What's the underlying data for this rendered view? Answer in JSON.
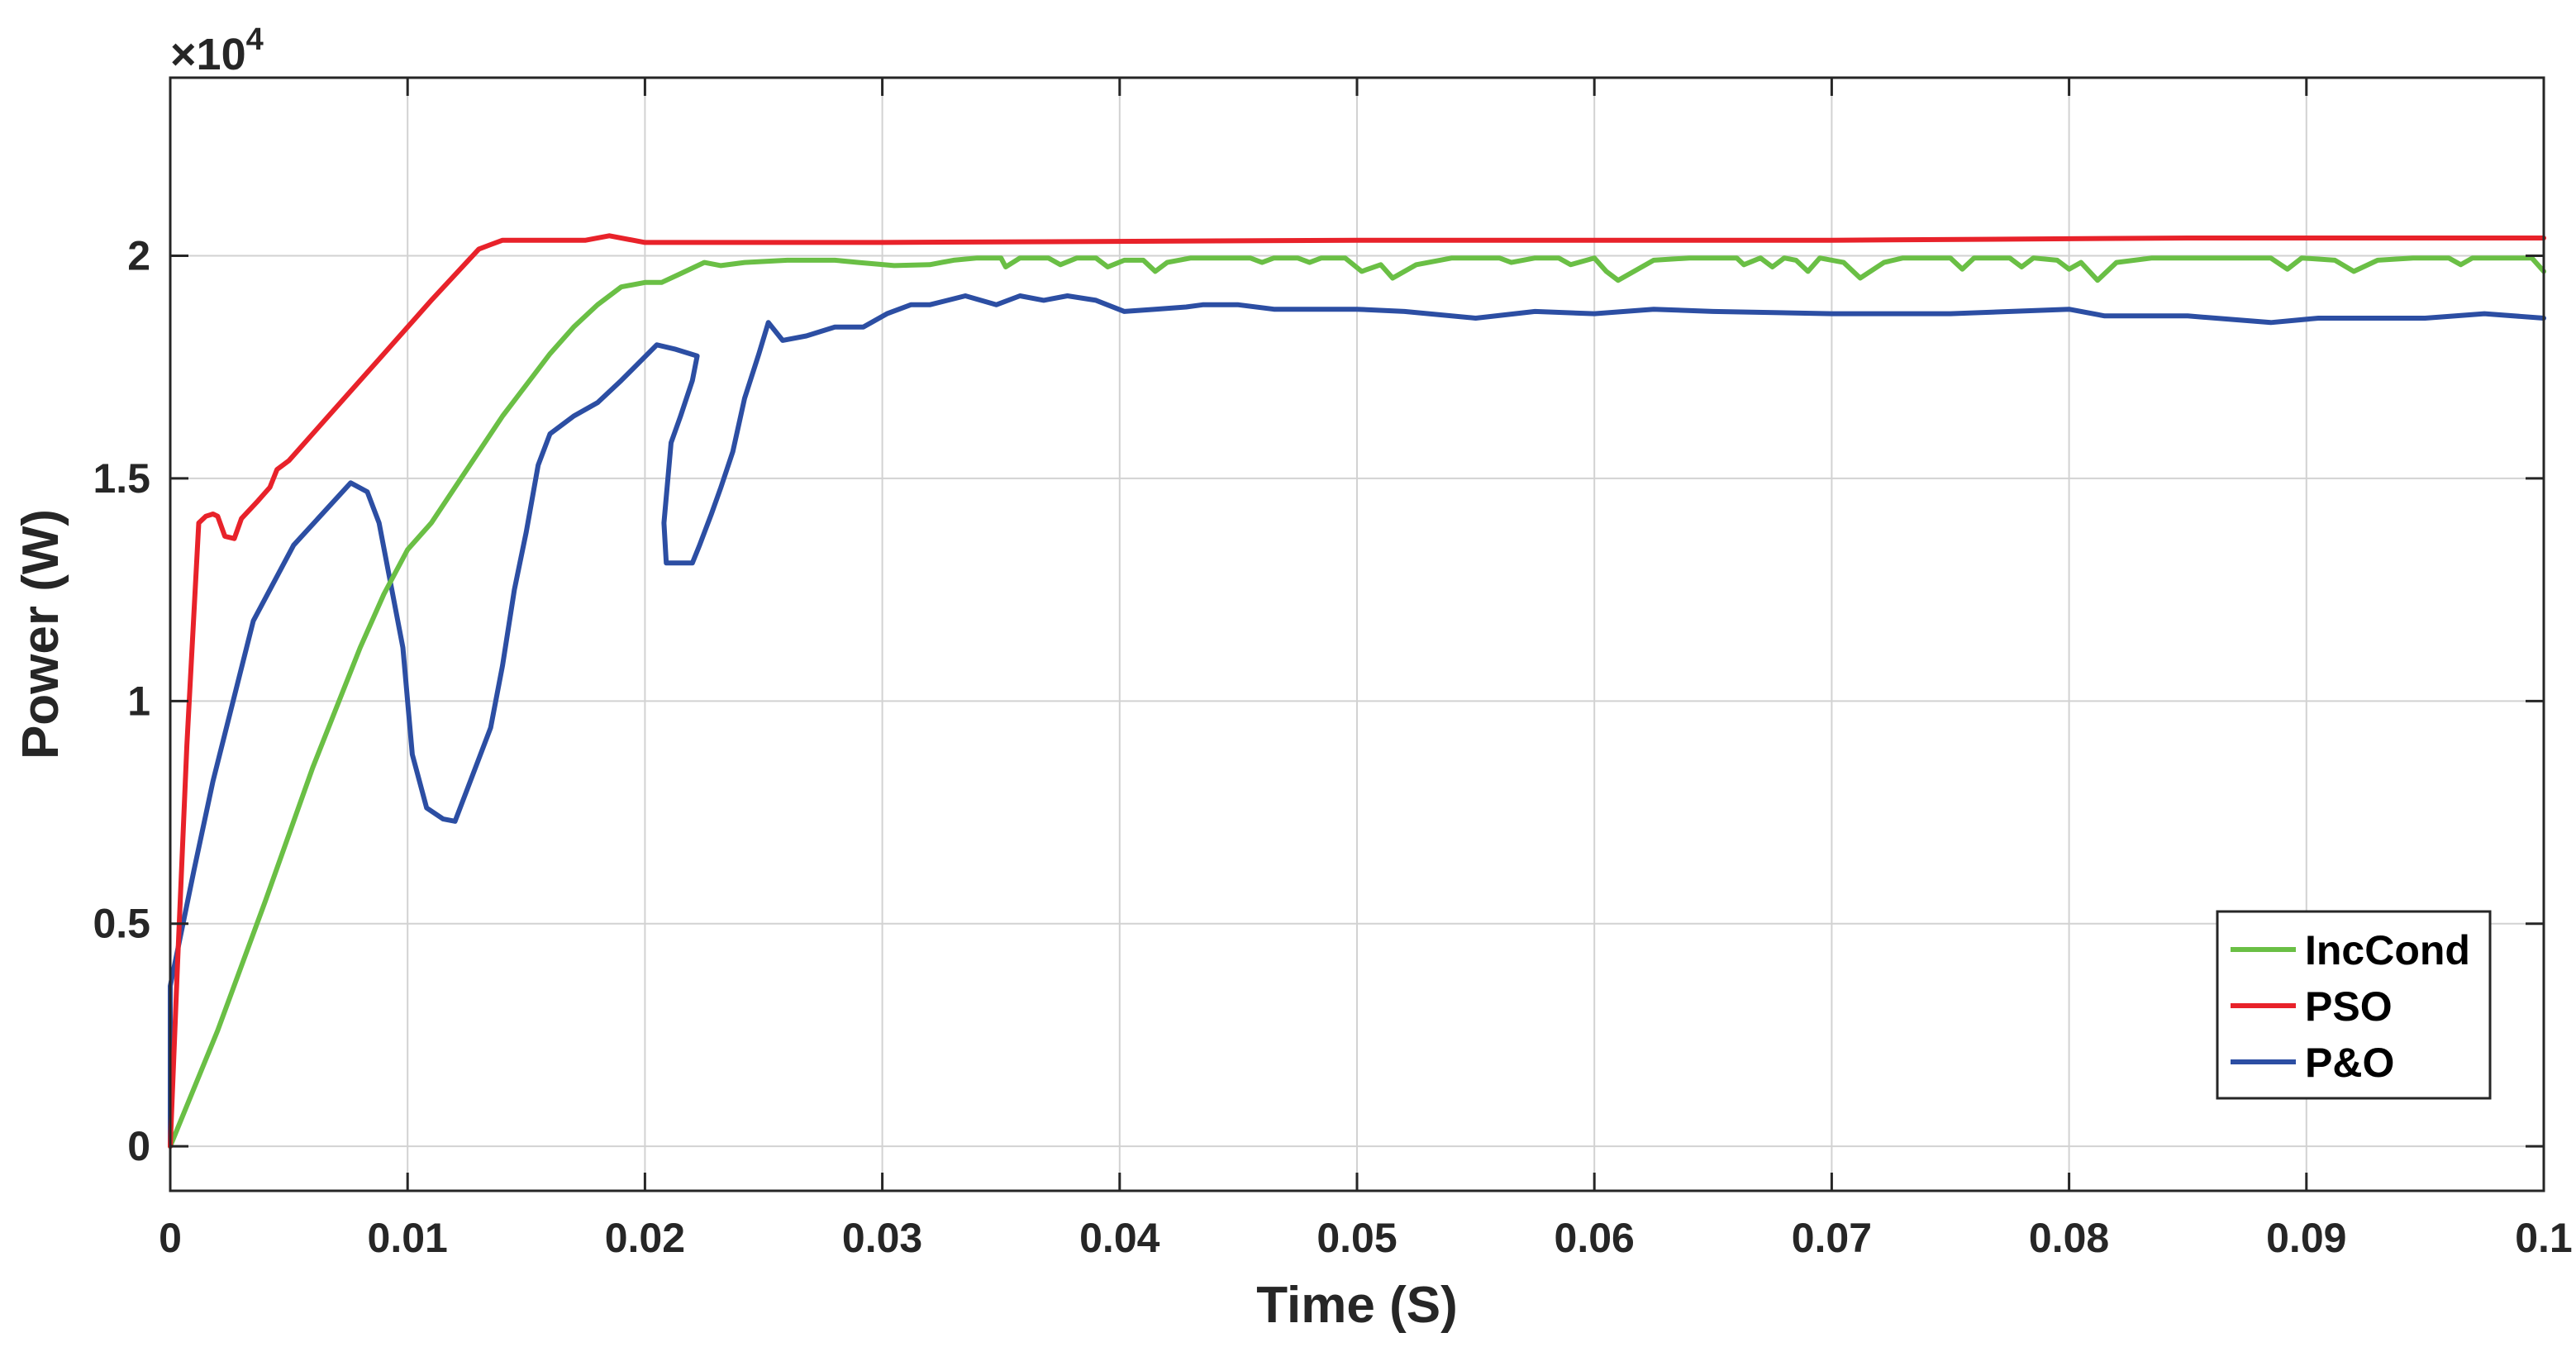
{
  "chart_data": {
    "type": "line",
    "xlabel": "Time (S)",
    "ylabel": "Power (W)",
    "y_multiplier_label": "×10",
    "y_multiplier_exponent": "4",
    "xlim": [
      0,
      0.1
    ],
    "ylim": [
      -0.1,
      2.4
    ],
    "x_ticks": [
      0,
      0.01,
      0.02,
      0.03,
      0.04,
      0.05,
      0.06,
      0.07,
      0.08,
      0.09,
      0.1
    ],
    "x_tick_labels": [
      "0",
      "0.01",
      "0.02",
      "0.03",
      "0.04",
      "0.05",
      "0.06",
      "0.07",
      "0.08",
      "0.09",
      "0.1"
    ],
    "y_ticks": [
      0,
      0.5,
      1,
      1.5,
      2
    ],
    "y_tick_labels": [
      "0",
      "0.5",
      "1",
      "1.5",
      "2"
    ],
    "grid": true,
    "legend_position": "bottom-right",
    "series": [
      {
        "name": "IncCond",
        "color": "#6abf45",
        "points": [
          [
            0,
            0
          ],
          [
            0.002,
            0.26
          ],
          [
            0.004,
            0.55
          ],
          [
            0.006,
            0.85
          ],
          [
            0.008,
            1.12
          ],
          [
            0.009,
            1.24
          ],
          [
            0.01,
            1.34
          ],
          [
            0.011,
            1.4
          ],
          [
            0.012,
            1.48
          ],
          [
            0.013,
            1.56
          ],
          [
            0.014,
            1.64
          ],
          [
            0.015,
            1.71
          ],
          [
            0.016,
            1.78
          ],
          [
            0.017,
            1.84
          ],
          [
            0.018,
            1.89
          ],
          [
            0.019,
            1.93
          ],
          [
            0.02,
            1.94
          ],
          [
            0.0207,
            1.94
          ],
          [
            0.0215,
            1.96
          ],
          [
            0.0225,
            1.985
          ],
          [
            0.0232,
            1.978
          ],
          [
            0.0242,
            1.985
          ],
          [
            0.026,
            1.99
          ],
          [
            0.028,
            1.99
          ],
          [
            0.029,
            1.985
          ],
          [
            0.0305,
            1.978
          ],
          [
            0.032,
            1.98
          ],
          [
            0.033,
            1.99
          ],
          [
            0.034,
            1.995
          ],
          [
            0.035,
            1.995
          ],
          [
            0.0352,
            1.975
          ],
          [
            0.0358,
            1.995
          ],
          [
            0.037,
            1.995
          ],
          [
            0.0375,
            1.98
          ],
          [
            0.0382,
            1.995
          ],
          [
            0.039,
            1.995
          ],
          [
            0.0395,
            1.975
          ],
          [
            0.0402,
            1.99
          ],
          [
            0.041,
            1.99
          ],
          [
            0.0415,
            1.965
          ],
          [
            0.042,
            1.985
          ],
          [
            0.043,
            1.995
          ],
          [
            0.0455,
            1.995
          ],
          [
            0.046,
            1.985
          ],
          [
            0.0465,
            1.995
          ],
          [
            0.0475,
            1.995
          ],
          [
            0.048,
            1.985
          ],
          [
            0.0485,
            1.995
          ],
          [
            0.0495,
            1.995
          ],
          [
            0.0502,
            1.965
          ],
          [
            0.051,
            1.98
          ],
          [
            0.0515,
            1.95
          ],
          [
            0.0525,
            1.98
          ],
          [
            0.054,
            1.995
          ],
          [
            0.056,
            1.995
          ],
          [
            0.0565,
            1.985
          ],
          [
            0.0575,
            1.995
          ],
          [
            0.0585,
            1.995
          ],
          [
            0.059,
            1.98
          ],
          [
            0.06,
            1.995
          ],
          [
            0.0605,
            1.965
          ],
          [
            0.061,
            1.945
          ],
          [
            0.0625,
            1.99
          ],
          [
            0.064,
            1.995
          ],
          [
            0.066,
            1.995
          ],
          [
            0.0663,
            1.98
          ],
          [
            0.067,
            1.995
          ],
          [
            0.0675,
            1.975
          ],
          [
            0.068,
            1.995
          ],
          [
            0.0685,
            1.99
          ],
          [
            0.069,
            1.965
          ],
          [
            0.0695,
            1.995
          ],
          [
            0.0705,
            1.985
          ],
          [
            0.0712,
            1.95
          ],
          [
            0.0722,
            1.985
          ],
          [
            0.073,
            1.995
          ],
          [
            0.075,
            1.995
          ],
          [
            0.0755,
            1.97
          ],
          [
            0.076,
            1.995
          ],
          [
            0.0775,
            1.995
          ],
          [
            0.078,
            1.975
          ],
          [
            0.0785,
            1.995
          ],
          [
            0.0795,
            1.99
          ],
          [
            0.08,
            1.97
          ],
          [
            0.0805,
            1.985
          ],
          [
            0.0812,
            1.945
          ],
          [
            0.082,
            1.985
          ],
          [
            0.0835,
            1.995
          ],
          [
            0.0865,
            1.995
          ],
          [
            0.0885,
            1.995
          ],
          [
            0.0892,
            1.97
          ],
          [
            0.0898,
            1.995
          ],
          [
            0.0912,
            1.99
          ],
          [
            0.092,
            1.965
          ],
          [
            0.093,
            1.99
          ],
          [
            0.0945,
            1.995
          ],
          [
            0.096,
            1.995
          ],
          [
            0.0965,
            1.98
          ],
          [
            0.097,
            1.995
          ],
          [
            0.0995,
            1.995
          ],
          [
            0.1,
            1.965
          ]
        ]
      },
      {
        "name": "PSO",
        "color": "#e8222a",
        "points": [
          [
            0,
            0
          ],
          [
            0.0003,
            0.4
          ],
          [
            0.0007,
            0.9
          ],
          [
            0.0012,
            1.4
          ],
          [
            0.0015,
            1.415
          ],
          [
            0.0018,
            1.42
          ],
          [
            0.002,
            1.415
          ],
          [
            0.0023,
            1.37
          ],
          [
            0.0027,
            1.365
          ],
          [
            0.003,
            1.41
          ],
          [
            0.0037,
            1.45
          ],
          [
            0.0042,
            1.48
          ],
          [
            0.0045,
            1.52
          ],
          [
            0.005,
            1.54
          ],
          [
            0.007,
            1.66
          ],
          [
            0.009,
            1.78
          ],
          [
            0.011,
            1.9
          ],
          [
            0.013,
            2.015
          ],
          [
            0.0135,
            2.025
          ],
          [
            0.014,
            2.035
          ],
          [
            0.016,
            2.035
          ],
          [
            0.0175,
            2.035
          ],
          [
            0.0185,
            2.045
          ],
          [
            0.0195,
            2.035
          ],
          [
            0.02,
            2.03
          ],
          [
            0.03,
            2.03
          ],
          [
            0.05,
            2.035
          ],
          [
            0.07,
            2.035
          ],
          [
            0.085,
            2.04
          ],
          [
            0.1,
            2.04
          ]
        ]
      },
      {
        "name": "P&O",
        "color": "#2c4ea3",
        "points": [
          [
            0,
            0
          ],
          [
            0,
            0.36
          ],
          [
            0.001,
            0.62
          ],
          [
            0.0018,
            0.82
          ],
          [
            0.0035,
            1.18
          ],
          [
            0.0052,
            1.35
          ],
          [
            0.0076,
            1.49
          ],
          [
            0.0083,
            1.47
          ],
          [
            0.0088,
            1.4
          ],
          [
            0.0093,
            1.26
          ],
          [
            0.0098,
            1.12
          ],
          [
            0.0102,
            0.88
          ],
          [
            0.0108,
            0.76
          ],
          [
            0.0115,
            0.735
          ],
          [
            0.012,
            0.73
          ],
          [
            0.0125,
            0.8
          ],
          [
            0.0135,
            0.94
          ],
          [
            0.014,
            1.08
          ],
          [
            0.0145,
            1.25
          ],
          [
            0.015,
            1.38
          ],
          [
            0.0155,
            1.53
          ],
          [
            0.016,
            1.6
          ],
          [
            0.017,
            1.64
          ],
          [
            0.018,
            1.67
          ],
          [
            0.019,
            1.72
          ],
          [
            0.0205,
            1.8
          ],
          [
            0.0213,
            1.79
          ],
          [
            0.0222,
            1.775
          ],
          [
            0.022,
            1.72
          ],
          [
            0.0215,
            1.64
          ],
          [
            0.0211,
            1.58
          ],
          [
            0.0208,
            1.4
          ],
          [
            0.0209,
            1.31
          ],
          [
            0.022,
            1.31
          ],
          [
            0.0223,
            1.35
          ],
          [
            0.0228,
            1.42
          ],
          [
            0.0232,
            1.48
          ],
          [
            0.0237,
            1.56
          ],
          [
            0.0242,
            1.68
          ],
          [
            0.0248,
            1.78
          ],
          [
            0.0252,
            1.85
          ],
          [
            0.0258,
            1.81
          ],
          [
            0.0268,
            1.82
          ],
          [
            0.028,
            1.84
          ],
          [
            0.0292,
            1.84
          ],
          [
            0.0302,
            1.87
          ],
          [
            0.0312,
            1.89
          ],
          [
            0.032,
            1.89
          ],
          [
            0.0335,
            1.91
          ],
          [
            0.0348,
            1.89
          ],
          [
            0.0358,
            1.91
          ],
          [
            0.0368,
            1.9
          ],
          [
            0.0378,
            1.91
          ],
          [
            0.039,
            1.9
          ],
          [
            0.0402,
            1.875
          ],
          [
            0.0415,
            1.88
          ],
          [
            0.0428,
            1.885
          ],
          [
            0.0435,
            1.89
          ],
          [
            0.045,
            1.89
          ],
          [
            0.0465,
            1.88
          ],
          [
            0.05,
            1.88
          ],
          [
            0.052,
            1.875
          ],
          [
            0.055,
            1.86
          ],
          [
            0.0575,
            1.875
          ],
          [
            0.06,
            1.87
          ],
          [
            0.0625,
            1.88
          ],
          [
            0.065,
            1.875
          ],
          [
            0.07,
            1.87
          ],
          [
            0.075,
            1.87
          ],
          [
            0.08,
            1.88
          ],
          [
            0.0815,
            1.865
          ],
          [
            0.085,
            1.865
          ],
          [
            0.0885,
            1.85
          ],
          [
            0.0905,
            1.86
          ],
          [
            0.095,
            1.86
          ],
          [
            0.0975,
            1.87
          ],
          [
            0.1,
            1.86
          ]
        ]
      }
    ]
  }
}
